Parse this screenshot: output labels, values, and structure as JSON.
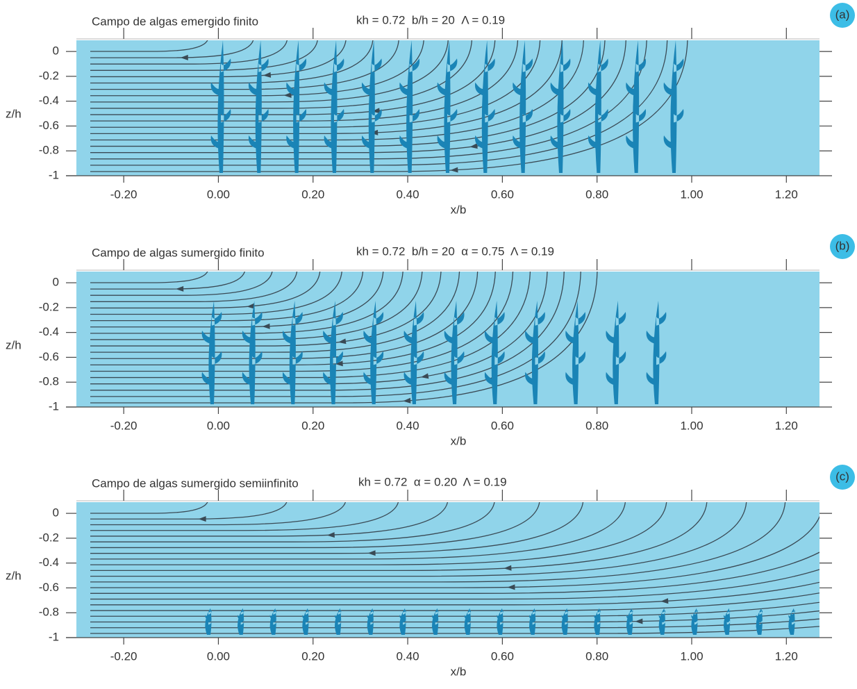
{
  "chart_data": [
    {
      "type": "streamline",
      "panel_label": "(a)",
      "title": "Campo de algas emergido finito",
      "parameters": "kh = 0.72  b/h = 20  Λ = 0.19",
      "xlabel": "x/b",
      "ylabel": "z/h",
      "xlim": [
        -0.3,
        1.27
      ],
      "ylim": [
        -1,
        0.09
      ],
      "xticks": [
        {
          "value": -0.2,
          "label": "-0.20"
        },
        {
          "value": 0,
          "label": "0.00"
        },
        {
          "value": 0.2,
          "label": "0.20"
        },
        {
          "value": 0.4,
          "label": "0.40"
        },
        {
          "value": 0.6,
          "label": "0.60"
        },
        {
          "value": 0.8,
          "label": "0.80"
        },
        {
          "value": 1,
          "label": "1.00"
        },
        {
          "value": 1.2,
          "label": "1.20"
        }
      ],
      "yticks": [
        0,
        -0.2,
        -0.4,
        -0.6,
        -0.8,
        -1
      ],
      "background_color": "#90d4ea",
      "plant_color": "#1a84b6"
    },
    {
      "type": "streamline",
      "panel_label": "(b)",
      "title": "Campo de algas sumergido finito",
      "parameters": "kh = 0.72  b/h = 20  α = 0.75  Λ = 0.19",
      "xlabel": "x/b",
      "ylabel": "z/h",
      "xlim": [
        -0.3,
        1.27
      ],
      "ylim": [
        -1,
        0.09
      ],
      "xticks": [
        {
          "value": -0.2,
          "label": "-0.20"
        },
        {
          "value": 0,
          "label": "0.00"
        },
        {
          "value": 0.2,
          "label": "0.20"
        },
        {
          "value": 0.4,
          "label": "0.40"
        },
        {
          "value": 0.6,
          "label": "0.60"
        },
        {
          "value": 0.8,
          "label": "0.80"
        },
        {
          "value": 1,
          "label": "1.00"
        },
        {
          "value": 1.2,
          "label": "1.20"
        }
      ],
      "yticks": [
        0,
        -0.2,
        -0.4,
        -0.6,
        -0.8,
        -1
      ],
      "background_color": "#90d4ea",
      "plant_color": "#1a84b6"
    },
    {
      "type": "streamline",
      "panel_label": "(c)",
      "title": "Campo de algas sumergido semiinfinito",
      "parameters": "kh = 0.72  α = 0.20  Λ = 0.19",
      "xlabel": "x/b",
      "ylabel": "z/h",
      "xlim": [
        -0.3,
        1.27
      ],
      "ylim": [
        -1,
        0.09
      ],
      "xticks": [
        {
          "value": -0.2,
          "label": "-0.20"
        },
        {
          "value": 0,
          "label": "0.00"
        },
        {
          "value": 0.2,
          "label": "0.20"
        },
        {
          "value": 0.4,
          "label": "0.40"
        },
        {
          "value": 0.6,
          "label": "0.60"
        },
        {
          "value": 0.8,
          "label": "0.80"
        },
        {
          "value": 1,
          "label": "1.00"
        },
        {
          "value": 1.2,
          "label": "1.20"
        }
      ],
      "yticks": [
        0,
        -0.2,
        -0.4,
        -0.6,
        -0.8,
        -1
      ],
      "background_color": "#90d4ea",
      "plant_color": "#1a84b6"
    }
  ]
}
